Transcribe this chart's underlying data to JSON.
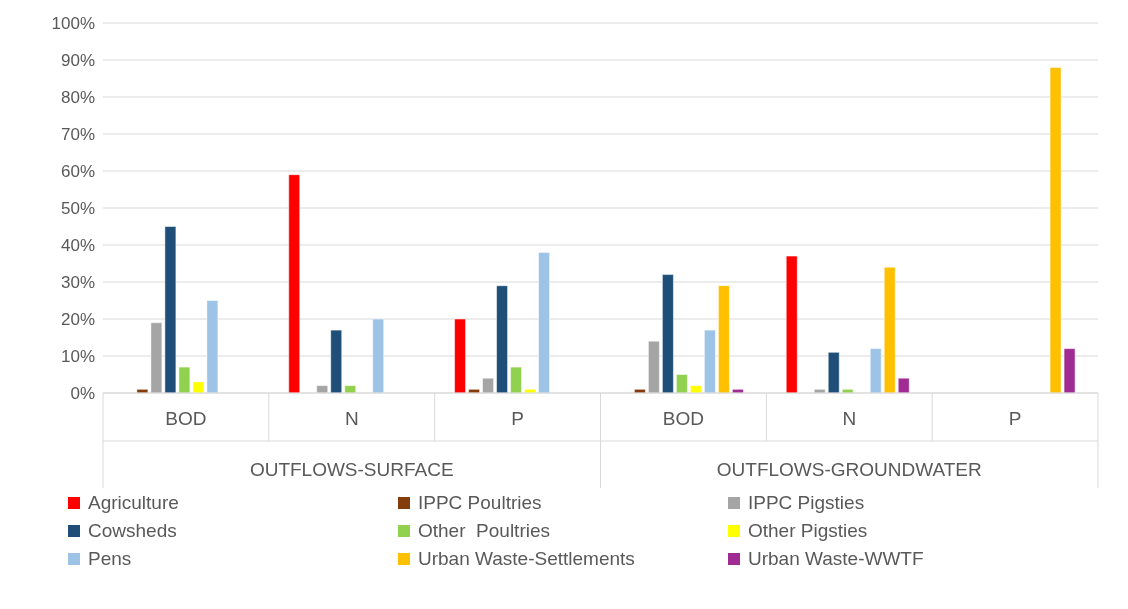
{
  "chart_data": {
    "type": "bar",
    "categories": [
      "BOD",
      "N",
      "P",
      "BOD",
      "N",
      "P"
    ],
    "annotations": [
      "OUTFLOWS-SURFACE",
      "OUTFLOWS-GROUNDWATER"
    ],
    "ylim": [
      0,
      100
    ],
    "yticks": [
      {
        "value": 0,
        "label": "0%"
      },
      {
        "value": 10,
        "label": "10%"
      },
      {
        "value": 20,
        "label": "20%"
      },
      {
        "value": 30,
        "label": "30%"
      },
      {
        "value": 40,
        "label": "40%"
      },
      {
        "value": 50,
        "label": "50%"
      },
      {
        "value": 60,
        "label": "60%"
      },
      {
        "value": 70,
        "label": "70%"
      },
      {
        "value": 80,
        "label": "80%"
      },
      {
        "value": 90,
        "label": "90%"
      },
      {
        "value": 100,
        "label": "100%"
      }
    ],
    "grid": "y",
    "legend": "bottom",
    "series": [
      {
        "name": "Agriculture",
        "color": "#ff0000",
        "values": [
          0,
          59,
          20,
          0,
          37,
          0
        ]
      },
      {
        "name": "IPPC Poultries",
        "color": "#843c0c",
        "values": [
          1,
          0,
          1,
          1,
          0,
          0
        ]
      },
      {
        "name": "IPPC Pigsties",
        "color": "#a5a5a5",
        "values": [
          19,
          2,
          4,
          14,
          1,
          0
        ]
      },
      {
        "name": "Cowsheds",
        "color": "#1f4e79",
        "values": [
          45,
          17,
          29,
          32,
          11,
          0
        ]
      },
      {
        "name": "Other  Poultries",
        "color": "#92d050",
        "values": [
          7,
          2,
          7,
          5,
          1,
          0
        ]
      },
      {
        "name": "Other Pigsties",
        "color": "#ffff00",
        "values": [
          3,
          0,
          1,
          2,
          0,
          0
        ]
      },
      {
        "name": "Pens",
        "color": "#9dc3e6",
        "values": [
          25,
          20,
          38,
          17,
          12,
          0
        ]
      },
      {
        "name": "Urban Waste-Settlements",
        "color": "#ffc000",
        "values": [
          0,
          0,
          0,
          29,
          34,
          88
        ]
      },
      {
        "name": "Urban Waste-WWTF",
        "color": "#a02b93",
        "values": [
          0,
          0,
          0,
          1,
          4,
          12
        ]
      }
    ]
  }
}
